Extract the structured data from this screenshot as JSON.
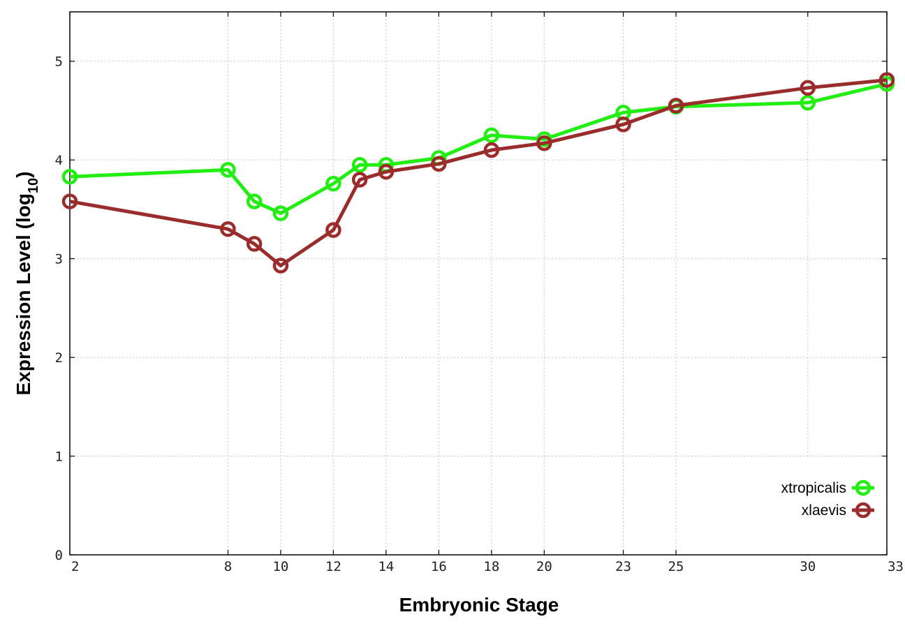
{
  "chart_data": {
    "type": "line",
    "xlabel": "Embryonic Stage",
    "ylabel_main": "Expression Level (log",
    "ylabel_sub": "10",
    "ylabel_close": ")",
    "x_ticks": [
      "2",
      "8",
      "10",
      "12",
      "14",
      "16",
      "18",
      "20",
      "23",
      "25",
      "30",
      "33"
    ],
    "x_tick_positions": [
      2,
      8,
      10,
      12,
      14,
      16,
      18,
      20,
      23,
      25,
      30,
      33
    ],
    "y_ticks": [
      "0",
      "1",
      "2",
      "3",
      "4",
      "5"
    ],
    "xlim": [
      2,
      33
    ],
    "ylim": [
      0,
      5.5
    ],
    "grid": true,
    "legend_position": "bottom-right",
    "series": [
      {
        "name": "xtropicalis",
        "color": "#22ee11",
        "x": [
          2,
          8,
          9,
          10,
          12,
          13,
          14,
          16,
          18,
          20,
          23,
          25,
          30,
          33
        ],
        "y": [
          3.83,
          3.9,
          3.58,
          3.46,
          3.76,
          3.95,
          3.95,
          4.02,
          4.25,
          4.21,
          4.48,
          4.54,
          4.58,
          4.77
        ]
      },
      {
        "name": "xlaevis",
        "color": "#9a2c2c",
        "x": [
          2,
          8,
          9,
          10,
          12,
          13,
          14,
          16,
          18,
          20,
          23,
          25,
          30,
          33
        ],
        "y": [
          3.58,
          3.3,
          3.15,
          2.93,
          3.29,
          3.8,
          3.88,
          3.96,
          4.1,
          4.17,
          4.36,
          4.55,
          4.73,
          4.81
        ]
      }
    ]
  }
}
